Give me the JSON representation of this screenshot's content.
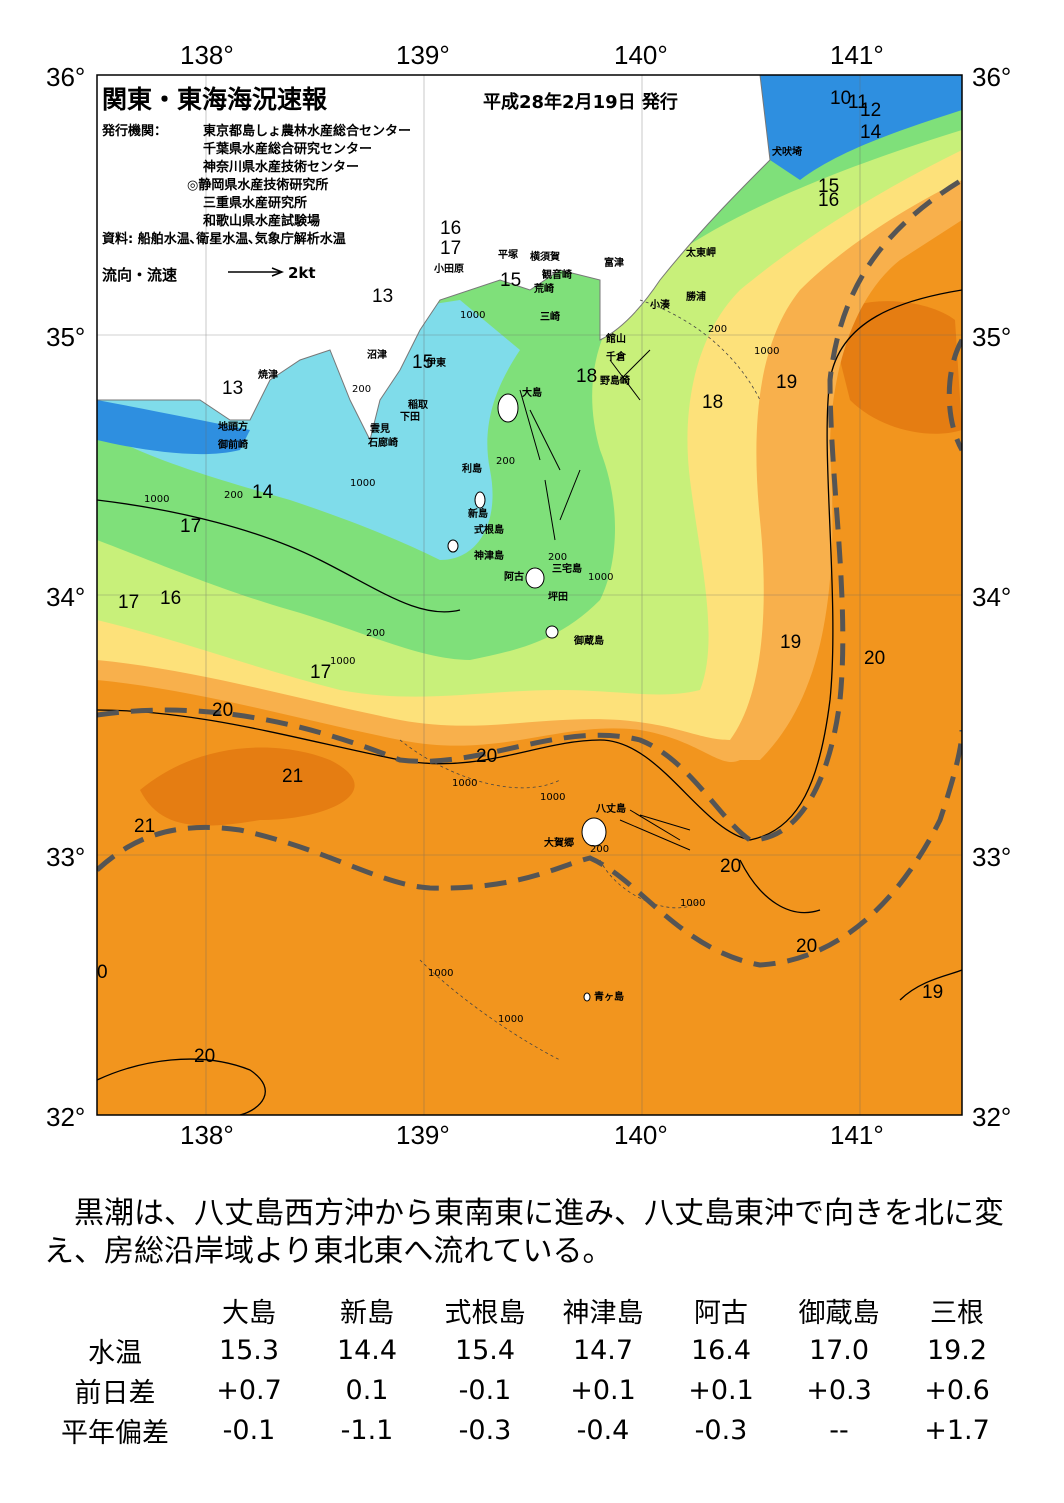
{
  "header": {
    "title": "関東・東海海況速報",
    "issue_date": "平成28年2月19日 発行",
    "issuer_label": "発行機関：",
    "issuers": [
      "東京都島しょ農林水産総合センター",
      "千葉県水産総合研究センター",
      "神奈川県水産技術センター",
      "◎静岡県水産技術研究所",
      "三重県水産研究所",
      "和歌山県水産試験場"
    ],
    "source": "資料: 船舶水温､衛星水温､気象庁解析水温",
    "legend_label": "流向・流速",
    "legend_value": "2kt"
  },
  "axes": {
    "lon_top": [
      "138°",
      "139°",
      "140°",
      "141°"
    ],
    "lon_bottom": [
      "138°",
      "139°",
      "140°",
      "141°"
    ],
    "lat_left": [
      "36°",
      "35°",
      "34°",
      "33°",
      "32°"
    ],
    "lat_right": [
      "36°",
      "35°",
      "34°",
      "33°",
      "32°"
    ]
  },
  "isotherm_labels": [
    "10",
    "11",
    "12",
    "14",
    "15",
    "16",
    "16",
    "17",
    "13",
    "15",
    "15",
    "13",
    "18",
    "19",
    "18",
    "14",
    "17",
    "17",
    "16",
    "17",
    "19",
    "20",
    "20",
    "20",
    "21",
    "21",
    "20",
    "20",
    "19",
    "20",
    "0"
  ],
  "depth_labels": [
    "200",
    "1000",
    "200",
    "1000",
    "200",
    "1000",
    "1000",
    "200",
    "200",
    "1000",
    "200",
    "1000",
    "1000",
    "1000",
    "1000",
    "200",
    "1000",
    "1000"
  ],
  "places": [
    "犬吠埼",
    "太東岬",
    "勝浦",
    "小湊",
    "館山",
    "千倉",
    "野島崎",
    "富津",
    "観音崎",
    "荒崎",
    "三崎",
    "横須賀",
    "平塚",
    "小田原",
    "沼津",
    "焼津",
    "御前崎",
    "地頭方",
    "伊東",
    "稲取",
    "下田",
    "雲見",
    "石廊崎",
    "大島",
    "利島",
    "新島",
    "式根島",
    "神津島",
    "阿古",
    "三宅島",
    "坪田",
    "御蔵島",
    "八丈島",
    "大賀郷",
    "青ヶ島"
  ],
  "colors": {
    "cold": "#2e8fe0",
    "cyan": "#7fdcea",
    "green": "#7fe07a",
    "lightgreen": "#c8f07a",
    "yellow": "#fde17a",
    "lightorange": "#f8b04c",
    "orange": "#f2951e",
    "darkorange": "#e57d12",
    "kuroshio_line": "#555555"
  },
  "description": "黒潮は、八丈島西方沖から東南東に進み、八丈島東沖で向きを北に変え、房総沿岸域より東北東へ流れている。",
  "table": {
    "stations": [
      "大島",
      "新島",
      "式根島",
      "神津島",
      "阿古",
      "御蔵島",
      "三根"
    ],
    "rows": [
      {
        "label": "水温",
        "values": [
          "15.3",
          "14.4",
          "15.4",
          "14.7",
          "16.4",
          "17.0",
          "19.2"
        ]
      },
      {
        "label": "前日差",
        "values": [
          "+0.7",
          "0.1",
          "-0.1",
          "+0.1",
          "+0.1",
          "+0.3",
          "+0.6"
        ]
      },
      {
        "label": "平年偏差",
        "values": [
          "-0.1",
          "-1.1",
          "-0.3",
          "-0.4",
          "-0.3",
          "--",
          "+1.7"
        ]
      }
    ]
  }
}
